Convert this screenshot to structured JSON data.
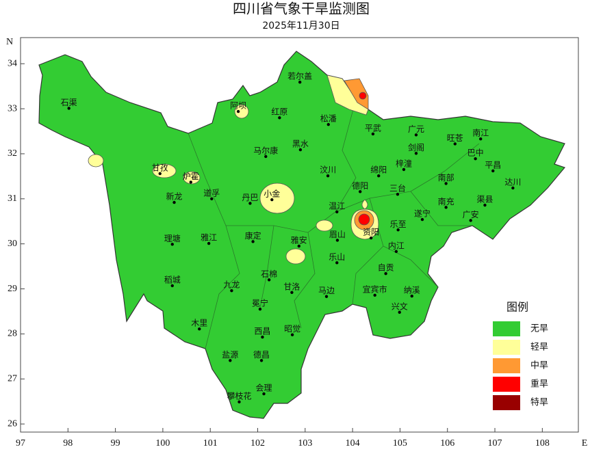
{
  "title": "四川省气象干旱监测图",
  "subtitle": "2025年11月30日",
  "axes": {
    "xlim": [
      97,
      108.76
    ],
    "ylim": [
      25.82,
      34.58
    ],
    "xticks": [
      97,
      98,
      99,
      100,
      101,
      102,
      103,
      104,
      105,
      106,
      107,
      108
    ],
    "yticks": [
      26,
      27,
      28,
      29,
      30,
      31,
      32,
      33,
      34
    ],
    "x_label": "E",
    "y_label": "N"
  },
  "cities": [
    {
      "name": "石渠",
      "lon": 98.02,
      "lat": 33.01
    },
    {
      "name": "若尔盖",
      "lon": 102.89,
      "lat": 33.59
    },
    {
      "name": "阿坝",
      "lon": 101.59,
      "lat": 32.94
    },
    {
      "name": "红原",
      "lon": 102.46,
      "lat": 32.8
    },
    {
      "name": "松潘",
      "lon": 103.49,
      "lat": 32.65
    },
    {
      "name": "平武",
      "lon": 104.43,
      "lat": 32.44
    },
    {
      "name": "广元",
      "lon": 105.34,
      "lat": 32.42
    },
    {
      "name": "旺苍",
      "lon": 106.16,
      "lat": 32.22
    },
    {
      "name": "南江",
      "lon": 106.7,
      "lat": 32.33
    },
    {
      "name": "剑阁",
      "lon": 105.34,
      "lat": 32.01
    },
    {
      "name": "巴中",
      "lon": 106.59,
      "lat": 31.89
    },
    {
      "name": "平昌",
      "lon": 106.96,
      "lat": 31.62
    },
    {
      "name": "达川",
      "lon": 107.38,
      "lat": 31.24
    },
    {
      "name": "马尔康",
      "lon": 102.17,
      "lat": 31.94
    },
    {
      "name": "黑水",
      "lon": 102.9,
      "lat": 32.09
    },
    {
      "name": "甘孜",
      "lon": 99.94,
      "lat": 31.56
    },
    {
      "name": "炉霍",
      "lon": 100.59,
      "lat": 31.37
    },
    {
      "name": "新龙",
      "lon": 100.24,
      "lat": 30.92
    },
    {
      "name": "道孚",
      "lon": 101.03,
      "lat": 31.0
    },
    {
      "name": "丹巴",
      "lon": 101.84,
      "lat": 30.9
    },
    {
      "name": "小金",
      "lon": 102.3,
      "lat": 30.98
    },
    {
      "name": "汶川",
      "lon": 103.48,
      "lat": 31.51
    },
    {
      "name": "绵阳",
      "lon": 104.55,
      "lat": 31.51
    },
    {
      "name": "梓潼",
      "lon": 105.08,
      "lat": 31.65
    },
    {
      "name": "三台",
      "lon": 104.95,
      "lat": 31.1
    },
    {
      "name": "南部",
      "lon": 105.97,
      "lat": 31.34
    },
    {
      "name": "德阳",
      "lon": 104.16,
      "lat": 31.16
    },
    {
      "name": "南充",
      "lon": 105.97,
      "lat": 30.81
    },
    {
      "name": "渠县",
      "lon": 106.79,
      "lat": 30.86
    },
    {
      "name": "遂宁",
      "lon": 105.47,
      "lat": 30.54
    },
    {
      "name": "广安",
      "lon": 106.49,
      "lat": 30.52
    },
    {
      "name": "温江",
      "lon": 103.67,
      "lat": 30.71
    },
    {
      "name": "乐至",
      "lon": 104.96,
      "lat": 30.31
    },
    {
      "name": "资阳",
      "lon": 104.39,
      "lat": 30.13
    },
    {
      "name": "眉山",
      "lon": 103.68,
      "lat": 30.08
    },
    {
      "name": "内江",
      "lon": 104.92,
      "lat": 29.83
    },
    {
      "name": "理塘",
      "lon": 100.2,
      "lat": 29.99
    },
    {
      "name": "雅江",
      "lon": 100.97,
      "lat": 30.01
    },
    {
      "name": "康定",
      "lon": 101.9,
      "lat": 30.05
    },
    {
      "name": "雅安",
      "lon": 102.87,
      "lat": 29.95
    },
    {
      "name": "乐山",
      "lon": 103.67,
      "lat": 29.58
    },
    {
      "name": "石棉",
      "lon": 102.24,
      "lat": 29.2
    },
    {
      "name": "自贡",
      "lon": 104.7,
      "lat": 29.34
    },
    {
      "name": "稻城",
      "lon": 100.2,
      "lat": 29.07
    },
    {
      "name": "九龙",
      "lon": 101.45,
      "lat": 28.96
    },
    {
      "name": "甘洛",
      "lon": 102.72,
      "lat": 28.92
    },
    {
      "name": "马边",
      "lon": 103.45,
      "lat": 28.83
    },
    {
      "name": "宜宾市",
      "lon": 104.47,
      "lat": 28.86
    },
    {
      "name": "纳溪",
      "lon": 105.25,
      "lat": 28.84
    },
    {
      "name": "冕宁",
      "lon": 102.05,
      "lat": 28.55
    },
    {
      "name": "兴文",
      "lon": 104.99,
      "lat": 28.48
    },
    {
      "name": "木里",
      "lon": 100.77,
      "lat": 28.11
    },
    {
      "name": "西昌",
      "lon": 102.1,
      "lat": 27.93
    },
    {
      "name": "昭觉",
      "lon": 102.73,
      "lat": 27.98
    },
    {
      "name": "盐源",
      "lon": 101.42,
      "lat": 27.41
    },
    {
      "name": "德昌",
      "lon": 102.08,
      "lat": 27.41
    },
    {
      "name": "会理",
      "lon": 102.13,
      "lat": 26.67
    },
    {
      "name": "攀枝花",
      "lon": 101.61,
      "lat": 26.49
    }
  ],
  "legend": {
    "title": "图例",
    "items": [
      {
        "label": "无旱",
        "color": "#33cc33"
      },
      {
        "label": "轻旱",
        "color": "#ffff99"
      },
      {
        "label": "中旱",
        "color": "#ff9933"
      },
      {
        "label": "重旱",
        "color": "#ff0000"
      },
      {
        "label": "特旱",
        "color": "#990000"
      }
    ]
  }
}
